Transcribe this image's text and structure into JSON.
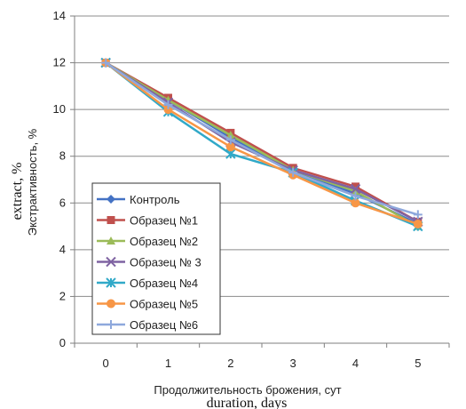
{
  "chart_data": {
    "type": "line",
    "x": [
      0,
      1,
      2,
      3,
      4,
      5
    ],
    "xlim": [
      -0.5,
      5.5
    ],
    "ylim": [
      0,
      14
    ],
    "y_ticks": [
      0,
      2,
      4,
      6,
      8,
      10,
      12,
      14
    ],
    "x_tick_labels": [
      "0",
      "1",
      "2",
      "3",
      "4",
      "5"
    ],
    "y_tick_labels": [
      "0",
      "2",
      "4",
      "6",
      "8",
      "10",
      "12",
      "14"
    ],
    "xlabel_ru": "Продолжительность брожения, сут",
    "xlabel_en": "duration, days",
    "ylabel_ru": "Экстрактивность, %",
    "ylabel_en": "extract, %",
    "grid": "horizontal",
    "legend_position": "bottom-left inside plot",
    "series": [
      {
        "name": "Контроль",
        "values": [
          12.0,
          10.4,
          8.8,
          7.4,
          6.4,
          5.1
        ],
        "color": "#4472C4",
        "marker": "diamond"
      },
      {
        "name": "Образец №1",
        "values": [
          12.0,
          10.5,
          9.0,
          7.5,
          6.7,
          5.2
        ],
        "color": "#C0504D",
        "marker": "square"
      },
      {
        "name": "Образец №2",
        "values": [
          12.0,
          10.4,
          8.9,
          7.4,
          6.5,
          5.0
        ],
        "color": "#9BBB59",
        "marker": "triangle"
      },
      {
        "name": "Образец № 3",
        "values": [
          12.0,
          10.3,
          8.6,
          7.4,
          6.6,
          5.2
        ],
        "color": "#7F63A2",
        "marker": "x"
      },
      {
        "name": "Образец №4",
        "values": [
          12.0,
          9.9,
          8.1,
          7.3,
          6.1,
          5.0
        ],
        "color": "#31A9C8",
        "marker": "star"
      },
      {
        "name": "Образец №5",
        "values": [
          12.0,
          10.0,
          8.4,
          7.2,
          6.0,
          5.1
        ],
        "color": "#F79646",
        "marker": "circle"
      },
      {
        "name": "Образец №6",
        "values": [
          12.0,
          10.2,
          8.7,
          7.3,
          6.3,
          5.5
        ],
        "color": "#8EA8DC",
        "marker": "plus"
      }
    ]
  }
}
